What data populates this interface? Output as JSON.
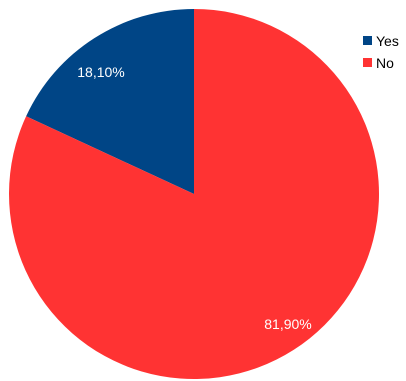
{
  "chart_data": {
    "type": "pie",
    "series": [
      {
        "name": "",
        "slices": [
          {
            "label": "Yes",
            "value": 18.1,
            "display": "18,10%",
            "color": "#004586"
          },
          {
            "label": "No",
            "value": 81.9,
            "display": "81,90%",
            "color": "#ff3333"
          }
        ]
      }
    ],
    "start_angle_deg": 0,
    "direction": "counterclockwise",
    "legend": {
      "placement": "top-right",
      "entries": [
        "Yes",
        "No"
      ]
    }
  }
}
